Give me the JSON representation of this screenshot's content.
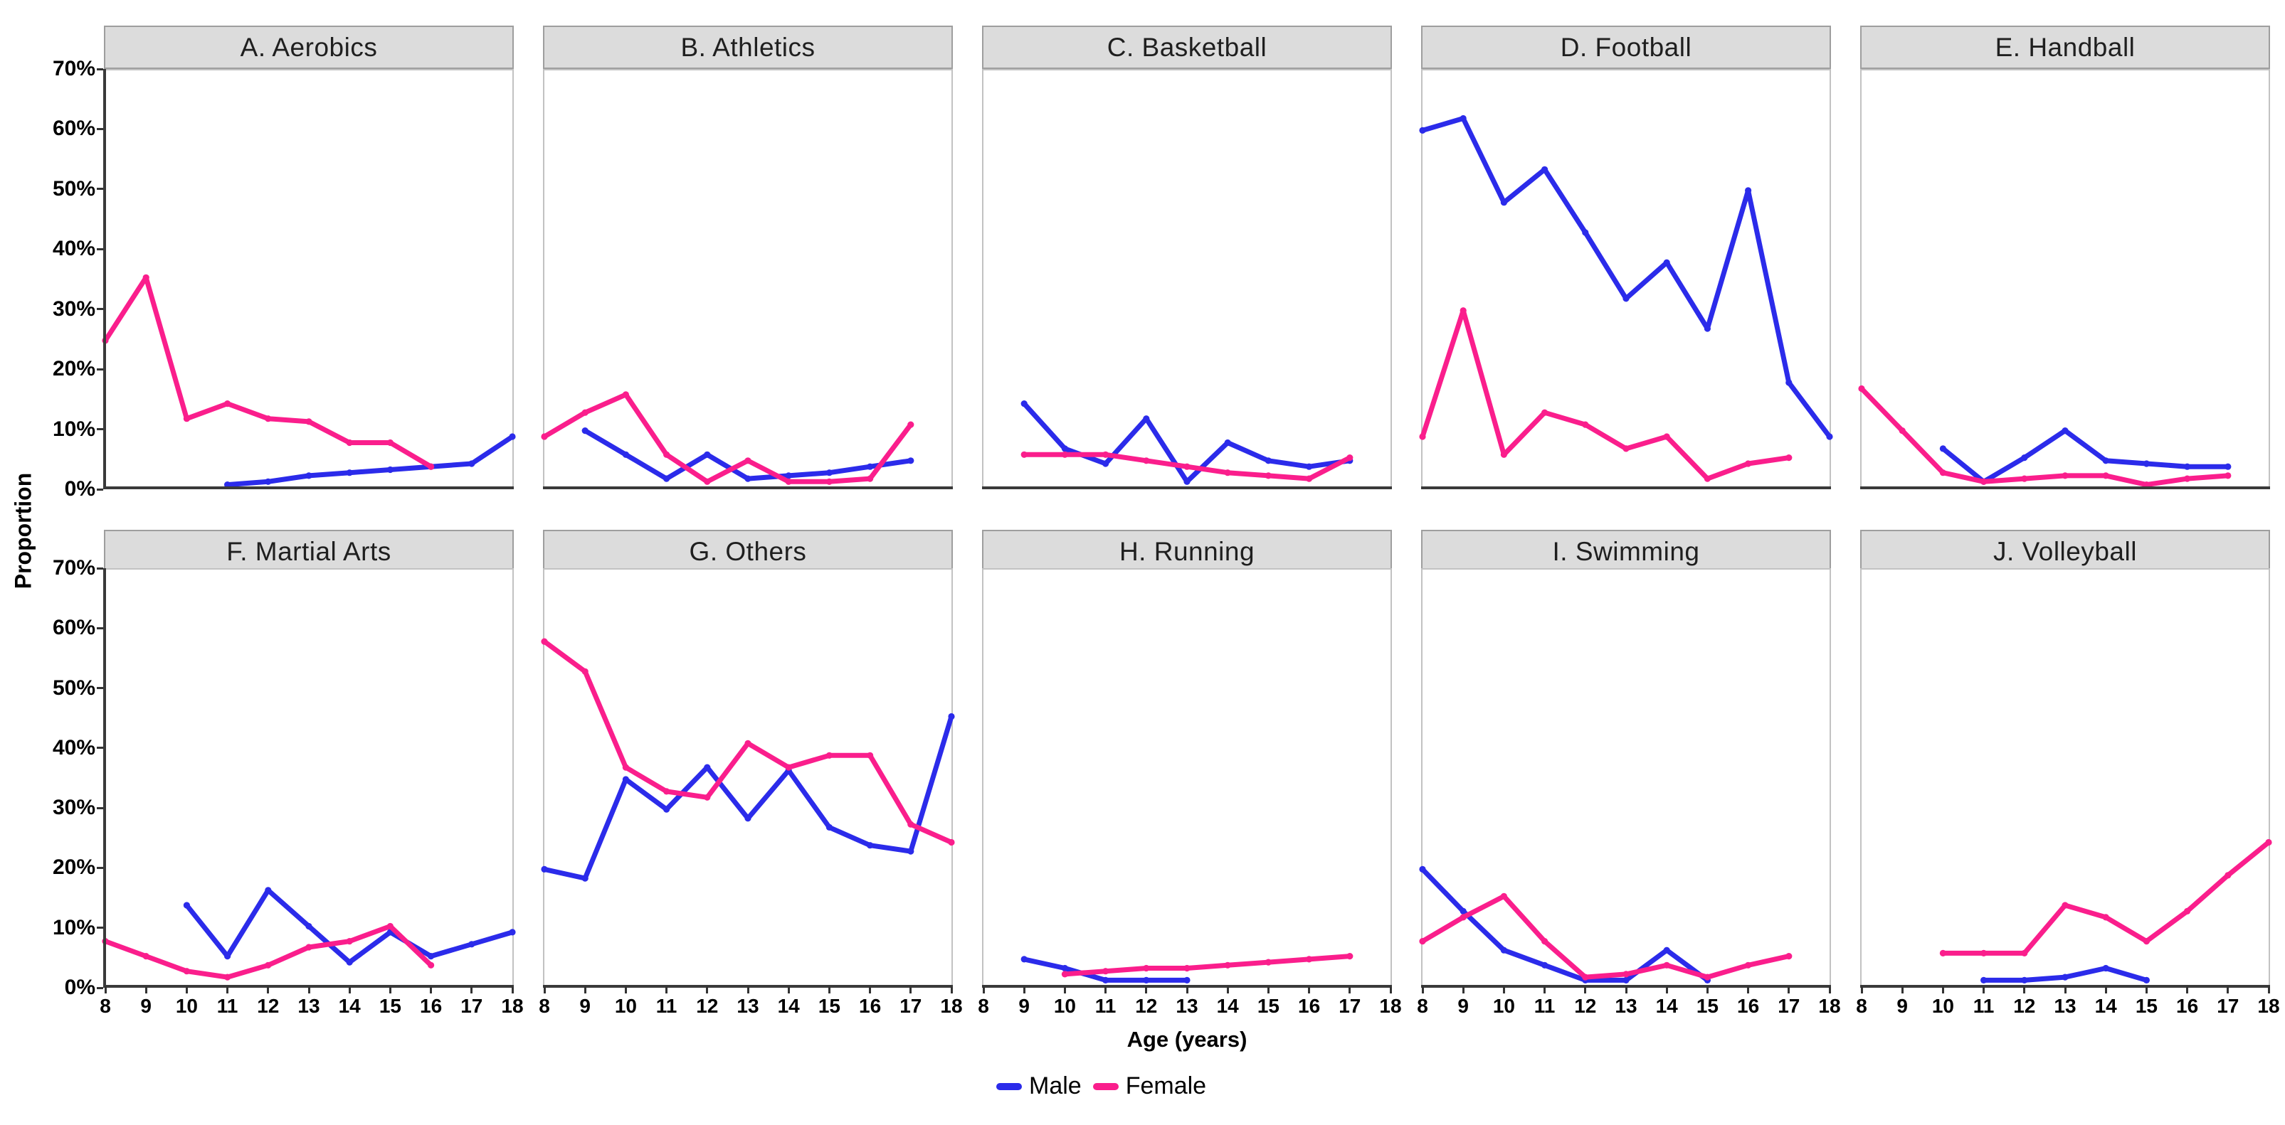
{
  "chart_data": {
    "type": "line",
    "title": "",
    "xlabel": "Age (years)",
    "ylabel": "Proportion",
    "x_range": [
      8,
      18
    ],
    "x_ticks": [
      8,
      9,
      10,
      11,
      12,
      13,
      14,
      15,
      16,
      17,
      18
    ],
    "y_ticks_percent": [
      0,
      10,
      20,
      30,
      40,
      50,
      60,
      70
    ],
    "ylim_percent": [
      0,
      70
    ],
    "grid": "off",
    "legend_position": "bottom",
    "legend": {
      "male_label": "Male",
      "female_label": "Female"
    },
    "colors": {
      "male": "#2b2bea",
      "female": "#fa1e8c",
      "strip_bg": "#dcdcdc",
      "strip_border": "#9e9e9e",
      "panel_border": "#c2c2c2",
      "axis_line": "#3a3a3a",
      "text": "#000000"
    },
    "panels": [
      {
        "label": "A. Aerobics",
        "series": [
          {
            "name": "Male",
            "points": [
              [
                11,
                1
              ],
              [
                12,
                1.5
              ],
              [
                13,
                2.5
              ],
              [
                14,
                3
              ],
              [
                15,
                3.5
              ],
              [
                16,
                4
              ],
              [
                17,
                4.5
              ],
              [
                18,
                9
              ]
            ]
          },
          {
            "name": "Female",
            "points": [
              [
                8,
                25
              ],
              [
                9,
                35.5
              ],
              [
                10,
                12
              ],
              [
                11,
                14.5
              ],
              [
                12,
                12
              ],
              [
                13,
                11.5
              ],
              [
                14,
                8
              ],
              [
                15,
                8
              ],
              [
                16,
                4
              ]
            ]
          }
        ]
      },
      {
        "label": "B. Athletics",
        "series": [
          {
            "name": "Male",
            "points": [
              [
                9,
                10
              ],
              [
                10,
                6
              ],
              [
                11,
                2
              ],
              [
                12,
                6
              ],
              [
                13,
                2
              ],
              [
                14,
                2.5
              ],
              [
                15,
                3
              ],
              [
                16,
                4
              ],
              [
                17,
                5
              ]
            ]
          },
          {
            "name": "Female",
            "points": [
              [
                8,
                9
              ],
              [
                9,
                13
              ],
              [
                10,
                16
              ],
              [
                11,
                6
              ],
              [
                12,
                1.5
              ],
              [
                13,
                5
              ],
              [
                14,
                1.5
              ],
              [
                15,
                1.5
              ],
              [
                16,
                2
              ],
              [
                17,
                11
              ]
            ]
          }
        ]
      },
      {
        "label": "C. Basketball",
        "series": [
          {
            "name": "Male",
            "points": [
              [
                9,
                14.5
              ],
              [
                10,
                7
              ],
              [
                11,
                4.5
              ],
              [
                12,
                12
              ],
              [
                13,
                1.5
              ],
              [
                14,
                8
              ],
              [
                15,
                5
              ],
              [
                16,
                4
              ],
              [
                17,
                5
              ]
            ]
          },
          {
            "name": "Female",
            "points": [
              [
                9,
                6
              ],
              [
                10,
                6
              ],
              [
                11,
                6
              ],
              [
                12,
                5
              ],
              [
                13,
                4
              ],
              [
                14,
                3
              ],
              [
                15,
                2.5
              ],
              [
                16,
                2
              ],
              [
                17,
                5.5
              ]
            ]
          }
        ]
      },
      {
        "label": "D. Football",
        "series": [
          {
            "name": "Male",
            "points": [
              [
                8,
                60
              ],
              [
                9,
                62
              ],
              [
                10,
                48
              ],
              [
                11,
                53.5
              ],
              [
                12,
                43
              ],
              [
                13,
                32
              ],
              [
                14,
                38
              ],
              [
                15,
                27
              ],
              [
                16,
                50
              ],
              [
                17,
                18
              ],
              [
                18,
                9
              ]
            ]
          },
          {
            "name": "Female",
            "points": [
              [
                8,
                9
              ],
              [
                9,
                30
              ],
              [
                10,
                6
              ],
              [
                11,
                13
              ],
              [
                12,
                11
              ],
              [
                13,
                7
              ],
              [
                14,
                9
              ],
              [
                15,
                2
              ],
              [
                16,
                4.5
              ],
              [
                17,
                5.5
              ]
            ]
          }
        ]
      },
      {
        "label": "E. Handball",
        "series": [
          {
            "name": "Male",
            "points": [
              [
                10,
                7
              ],
              [
                11,
                1.5
              ],
              [
                12,
                5.5
              ],
              [
                13,
                10
              ],
              [
                14,
                5
              ],
              [
                15,
                4.5
              ],
              [
                16,
                4
              ],
              [
                17,
                4
              ]
            ]
          },
          {
            "name": "Female",
            "points": [
              [
                8,
                17
              ],
              [
                9,
                10
              ],
              [
                10,
                3
              ],
              [
                11,
                1.5
              ],
              [
                12,
                2
              ],
              [
                13,
                2.5
              ],
              [
                14,
                2.5
              ],
              [
                15,
                1
              ],
              [
                16,
                2
              ],
              [
                17,
                2.5
              ]
            ]
          }
        ]
      },
      {
        "label": "F. Martial Arts",
        "series": [
          {
            "name": "Male",
            "points": [
              [
                10,
                14
              ],
              [
                11,
                5.5
              ],
              [
                12,
                16.5
              ],
              [
                13,
                10.5
              ],
              [
                14,
                4.5
              ],
              [
                15,
                9.5
              ],
              [
                16,
                5.5
              ],
              [
                17,
                7.5
              ],
              [
                18,
                9.5
              ]
            ]
          },
          {
            "name": "Female",
            "points": [
              [
                8,
                8
              ],
              [
                9,
                5.5
              ],
              [
                10,
                3
              ],
              [
                11,
                2
              ],
              [
                12,
                4
              ],
              [
                13,
                7
              ],
              [
                14,
                8
              ],
              [
                15,
                10.5
              ],
              [
                16,
                4
              ]
            ]
          }
        ]
      },
      {
        "label": "G. Others",
        "series": [
          {
            "name": "Male",
            "points": [
              [
                8,
                20
              ],
              [
                9,
                18.5
              ],
              [
                10,
                35
              ],
              [
                11,
                30
              ],
              [
                12,
                37
              ],
              [
                13,
                28.5
              ],
              [
                14,
                36.5
              ],
              [
                15,
                27
              ],
              [
                16,
                24
              ],
              [
                17,
                23
              ],
              [
                18,
                45.5
              ]
            ]
          },
          {
            "name": "Female",
            "points": [
              [
                8,
                58
              ],
              [
                9,
                53
              ],
              [
                10,
                37
              ],
              [
                11,
                33
              ],
              [
                12,
                32
              ],
              [
                13,
                41
              ],
              [
                14,
                37
              ],
              [
                15,
                39
              ],
              [
                16,
                39
              ],
              [
                17,
                27.5
              ],
              [
                18,
                24.5
              ]
            ]
          }
        ]
      },
      {
        "label": "H. Running",
        "series": [
          {
            "name": "Male",
            "points": [
              [
                9,
                5
              ],
              [
                10,
                3.5
              ],
              [
                11,
                1.5
              ],
              [
                12,
                1.5
              ],
              [
                13,
                1.5
              ]
            ]
          },
          {
            "name": "Female",
            "points": [
              [
                10,
                2.5
              ],
              [
                11,
                3
              ],
              [
                12,
                3.5
              ],
              [
                13,
                3.5
              ],
              [
                14,
                4
              ],
              [
                15,
                4.5
              ],
              [
                16,
                5
              ],
              [
                17,
                5.5
              ]
            ]
          }
        ]
      },
      {
        "label": "I. Swimming",
        "series": [
          {
            "name": "Male",
            "points": [
              [
                8,
                20
              ],
              [
                9,
                13
              ],
              [
                10,
                6.5
              ],
              [
                11,
                4
              ],
              [
                12,
                1.5
              ],
              [
                13,
                1.5
              ],
              [
                14,
                6.5
              ],
              [
                15,
                1.5
              ]
            ]
          },
          {
            "name": "Female",
            "points": [
              [
                8,
                8
              ],
              [
                9,
                12
              ],
              [
                10,
                15.5
              ],
              [
                11,
                8
              ],
              [
                12,
                2
              ],
              [
                13,
                2.5
              ],
              [
                14,
                4
              ],
              [
                15,
                2
              ],
              [
                16,
                4
              ],
              [
                17,
                5.5
              ]
            ]
          }
        ]
      },
      {
        "label": "J. Volleyball",
        "series": [
          {
            "name": "Male",
            "points": [
              [
                11,
                1.5
              ],
              [
                12,
                1.5
              ],
              [
                13,
                2
              ],
              [
                14,
                3.5
              ],
              [
                15,
                1.5
              ]
            ]
          },
          {
            "name": "Female",
            "points": [
              [
                10,
                6
              ],
              [
                11,
                6
              ],
              [
                12,
                6
              ],
              [
                13,
                14
              ],
              [
                14,
                12
              ],
              [
                15,
                8
              ],
              [
                16,
                13
              ],
              [
                17,
                19
              ],
              [
                18,
                24.5
              ]
            ]
          }
        ]
      }
    ]
  }
}
